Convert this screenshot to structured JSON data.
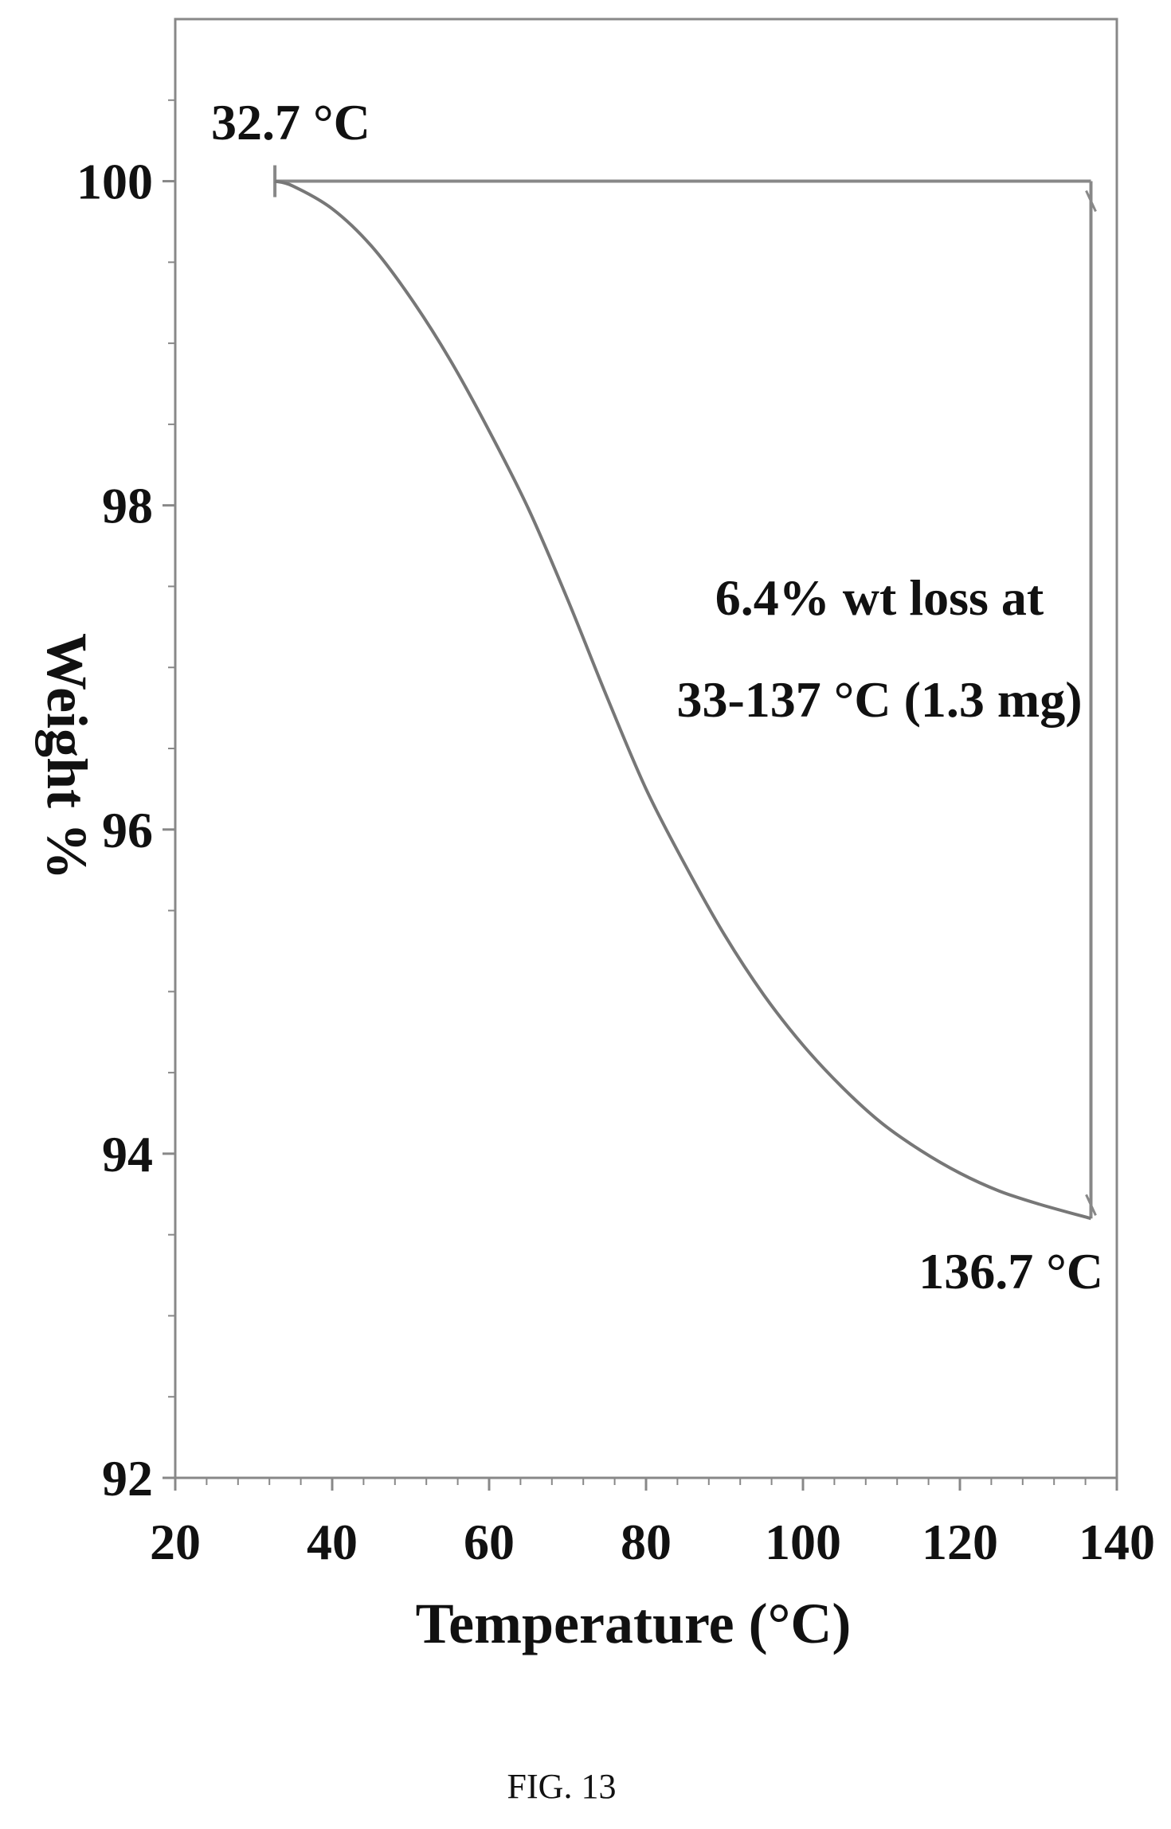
{
  "chart_data": {
    "type": "line",
    "xlabel": "Temperature (°C)",
    "ylabel": "Weight %",
    "xlim": [
      20,
      140
    ],
    "ylim": [
      92,
      101
    ],
    "x_ticks": [
      20,
      40,
      60,
      80,
      100,
      120,
      140
    ],
    "y_ticks": [
      92,
      94,
      96,
      98,
      100
    ],
    "grid": false,
    "series": [
      {
        "x": [
          32.7,
          35,
          40,
          45,
          50,
          55,
          60,
          65,
          70,
          75,
          80,
          85,
          90,
          95,
          100,
          105,
          110,
          115,
          120,
          125,
          130,
          136.7
        ],
        "y": [
          100.0,
          99.97,
          99.83,
          99.6,
          99.28,
          98.9,
          98.46,
          97.98,
          97.42,
          96.82,
          96.25,
          95.78,
          95.35,
          94.98,
          94.67,
          94.41,
          94.19,
          94.02,
          93.88,
          93.77,
          93.69,
          93.6
        ]
      }
    ],
    "annotations": [
      {
        "text": "32.7 °C",
        "x": 32.7,
        "y": 100.0
      },
      {
        "text": "136.7 °C",
        "x": 136.7,
        "y": 93.6
      },
      {
        "text_lines": [
          "6.4% wt loss at",
          "33-137 °C (1.3 mg)"
        ]
      }
    ],
    "step_marker": {
      "x_start": 32.7,
      "x_end": 136.7,
      "y_top": 100.0,
      "y_bottom": 93.6
    }
  },
  "caption": "FIG. 13"
}
